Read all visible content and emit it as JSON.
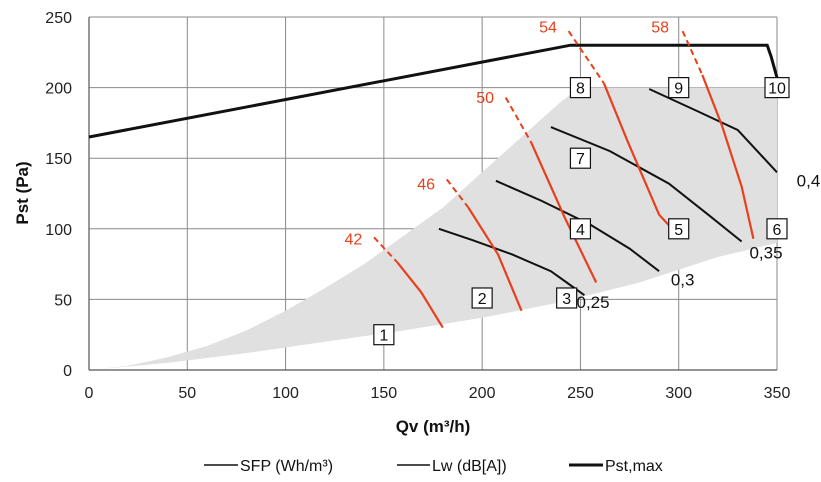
{
  "chart_data": {
    "type": "line",
    "xlabel": "Qv (m³/h)",
    "ylabel": "Pst (Pa)",
    "xlim": [
      0,
      350
    ],
    "ylim": [
      0,
      250
    ],
    "x_ticks": [
      "0",
      "50",
      "100",
      "150",
      "200",
      "250",
      "300",
      "350"
    ],
    "y_ticks": [
      "0",
      "50",
      "100",
      "150",
      "200",
      "250"
    ],
    "grid": true,
    "legend_position": "bottom",
    "legend": [
      "SFP (Wh/m³)",
      "Lw (dB[A])",
      "Pst,max"
    ],
    "operating_area": [
      [
        0,
        0
      ],
      [
        40,
        5
      ],
      [
        80,
        12
      ],
      [
        120,
        20
      ],
      [
        160,
        28
      ],
      [
        200,
        37
      ],
      [
        240,
        48
      ],
      [
        280,
        62
      ],
      [
        320,
        80
      ],
      [
        350,
        90
      ],
      [
        350,
        200
      ],
      [
        250,
        200
      ],
      [
        240,
        190
      ],
      [
        220,
        165
      ],
      [
        200,
        140
      ],
      [
        180,
        115
      ],
      [
        160,
        95
      ],
      [
        140,
        75
      ],
      [
        120,
        58
      ],
      [
        100,
        42
      ],
      [
        80,
        28
      ],
      [
        60,
        17
      ],
      [
        40,
        9
      ],
      [
        20,
        3
      ],
      [
        0,
        0
      ]
    ],
    "pst_max": {
      "name": "Pst,max",
      "points": [
        [
          0,
          165
        ],
        [
          245,
          230
        ],
        [
          345,
          230
        ],
        [
          347,
          222
        ],
        [
          350,
          207
        ]
      ]
    },
    "sfp_curves": [
      {
        "label": "0,25",
        "points": [
          [
            178,
            100
          ],
          [
            195,
            92
          ],
          [
            215,
            82
          ],
          [
            235,
            70
          ],
          [
            243,
            62
          ],
          [
            252,
            53
          ]
        ],
        "label_at": [
          248,
          44
        ]
      },
      {
        "label": "0,3",
        "points": [
          [
            207,
            134
          ],
          [
            230,
            120
          ],
          [
            255,
            103
          ],
          [
            275,
            86
          ],
          [
            290,
            70
          ]
        ],
        "label_at": [
          296,
          60
        ]
      },
      {
        "label": "0,35",
        "points": [
          [
            235,
            172
          ],
          [
            265,
            155
          ],
          [
            295,
            132
          ],
          [
            315,
            110
          ],
          [
            332,
            91
          ]
        ],
        "label_at": [
          336,
          79
        ]
      },
      {
        "label": "0,4",
        "points": [
          [
            285,
            199
          ],
          [
            310,
            183
          ],
          [
            330,
            170
          ],
          [
            350,
            140
          ]
        ],
        "label_at": [
          360,
          130
        ]
      }
    ],
    "lw_curves": [
      {
        "label": "42",
        "points": [
          [
            145,
            94
          ],
          [
            157,
            76
          ],
          [
            169,
            55
          ],
          [
            180,
            30
          ]
        ],
        "label_at": [
          130,
          89
        ]
      },
      {
        "label": "46",
        "points": [
          [
            182,
            135
          ],
          [
            193,
            115
          ],
          [
            208,
            82
          ],
          [
            220,
            42
          ]
        ],
        "label_at": [
          167,
          128
        ]
      },
      {
        "label": "50",
        "points": [
          [
            212,
            193
          ],
          [
            225,
            161
          ],
          [
            242,
            108
          ],
          [
            258,
            62
          ]
        ],
        "label_at": [
          197,
          189
        ]
      },
      {
        "label": "54",
        "points": [
          [
            244,
            240
          ],
          [
            262,
            203
          ],
          [
            274,
            162
          ],
          [
            290,
            110
          ],
          [
            298,
            98
          ]
        ],
        "label_at": [
          229,
          239
        ]
      },
      {
        "label": "58",
        "points": [
          [
            302,
            240
          ],
          [
            312,
            209
          ],
          [
            322,
            173
          ],
          [
            332,
            130
          ],
          [
            338,
            93
          ]
        ],
        "label_at": [
          286,
          239
        ]
      }
    ],
    "points": [
      {
        "label": "1",
        "x": 150,
        "y": 25
      },
      {
        "label": "2",
        "x": 200,
        "y": 51
      },
      {
        "label": "3",
        "x": 243,
        "y": 51
      },
      {
        "label": "4",
        "x": 250,
        "y": 100
      },
      {
        "label": "5",
        "x": 300,
        "y": 100
      },
      {
        "label": "6",
        "x": 350,
        "y": 100
      },
      {
        "label": "7",
        "x": 250,
        "y": 150
      },
      {
        "label": "8",
        "x": 250,
        "y": 200
      },
      {
        "label": "9",
        "x": 300,
        "y": 200
      },
      {
        "label": "10",
        "x": 350,
        "y": 200
      }
    ],
    "colors": {
      "area": "#e0e0e0",
      "grid": "#8a8a8a",
      "axis": "#555555",
      "sfp": "#111111",
      "lw": "#e8401c",
      "pst_max": "#111111"
    }
  }
}
